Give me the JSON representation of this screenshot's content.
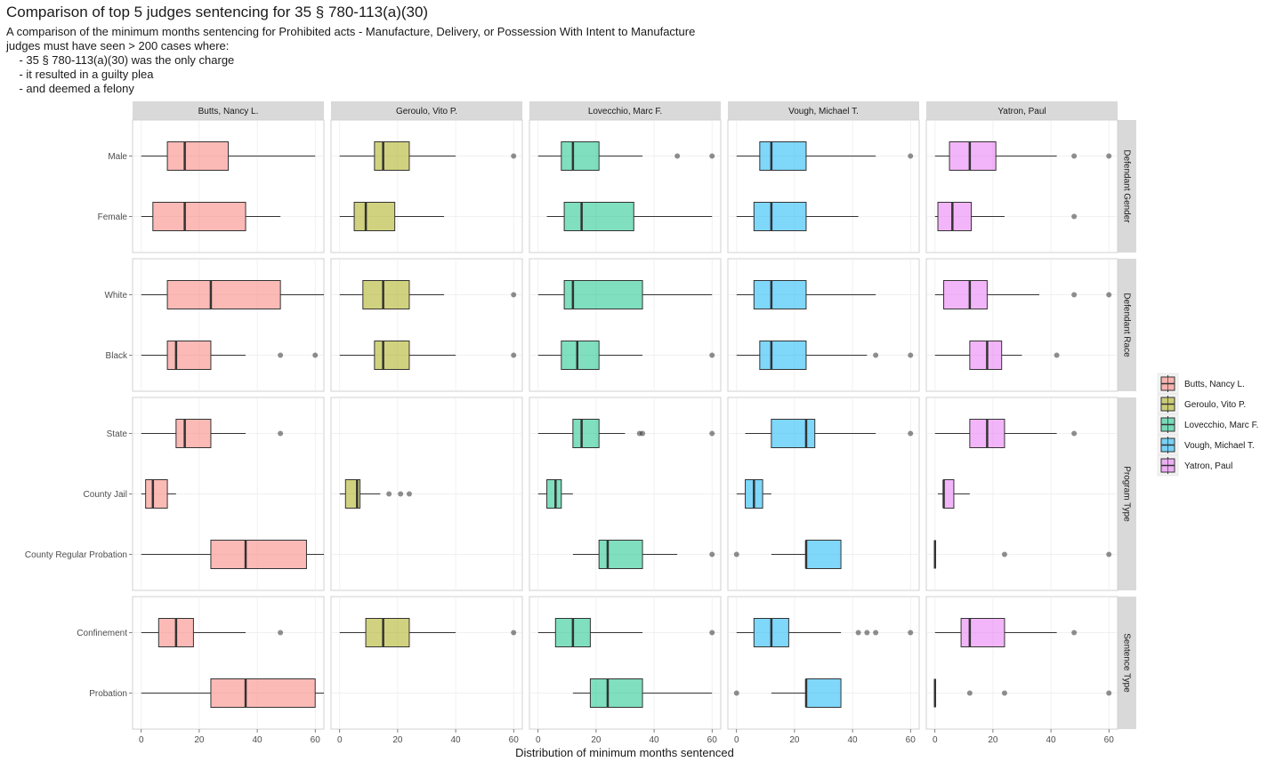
{
  "chart_data": {
    "type": "box",
    "title": "Comparison of top 5 judges sentencing for 35 § 780-113(a)(30)",
    "subtitle": [
      "A comparison of the minimum months sentencing for Prohibited acts - Manufacture, Delivery, or Possession With Intent to Manufacture",
      "judges must have seen > 200 cases where:",
      "    - 35 § 780-113(a)(30) was the only charge",
      "    - it resulted in a guilty plea",
      "    - and deemed a felony"
    ],
    "x_label": "Distribution of minimum months sentenced",
    "xlim": [
      -3,
      63
    ],
    "xticks": [
      0,
      20,
      40,
      60
    ],
    "grid": true,
    "legend_position": "right",
    "facet_rows": [
      {
        "name": "Defendant Gender",
        "categories": [
          "Male",
          "Female"
        ]
      },
      {
        "name": "Defendant Race",
        "categories": [
          "White",
          "Black"
        ]
      },
      {
        "name": "Program Type",
        "categories": [
          "State",
          "County Jail",
          "County Regular Probation"
        ]
      },
      {
        "name": "Sentence Type",
        "categories": [
          "Confinement",
          "Probation"
        ]
      }
    ],
    "series": [
      {
        "name": "Butts, Nancy L.",
        "color": "#F8766D",
        "rows": [
          [
            {
              "low": 0,
              "q1": 9,
              "median": 15,
              "q3": 30,
              "high": 60
            },
            {
              "low": 0,
              "q1": 4,
              "median": 15,
              "q3": 36,
              "high": 48
            }
          ],
          [
            {
              "low": 0,
              "q1": 9,
              "median": 24,
              "q3": 48,
              "high": 63
            },
            {
              "low": 0,
              "q1": 9,
              "median": 12,
              "q3": 24,
              "high": 36,
              "outliers": [
                48,
                60
              ]
            }
          ],
          [
            {
              "low": 0,
              "q1": 12,
              "median": 15,
              "q3": 24,
              "high": 36,
              "outliers": [
                48
              ]
            },
            {
              "low": 0,
              "q1": 1.5,
              "median": 4,
              "q3": 9,
              "high": 12
            },
            {
              "low": 0,
              "q1": 24,
              "median": 36,
              "q3": 57,
              "high": 63
            }
          ],
          [
            {
              "low": 0,
              "q1": 6,
              "median": 12,
              "q3": 18,
              "high": 36,
              "outliers": [
                48
              ]
            },
            {
              "low": 0,
              "q1": 24,
              "median": 36,
              "q3": 60,
              "high": 63
            }
          ]
        ]
      },
      {
        "name": "Geroulo, Vito P.",
        "color": "#A3A500",
        "rows": [
          [
            {
              "low": 0,
              "q1": 12,
              "median": 15,
              "q3": 24,
              "high": 40,
              "outliers": [
                60
              ]
            },
            {
              "low": 0,
              "q1": 5,
              "median": 9,
              "q3": 19,
              "high": 36
            }
          ],
          [
            {
              "low": 0,
              "q1": 8,
              "median": 15,
              "q3": 24,
              "high": 36,
              "outliers": [
                60
              ]
            },
            {
              "low": 0,
              "q1": 12,
              "median": 15,
              "q3": 24,
              "high": 40,
              "outliers": [
                60
              ]
            }
          ],
          [
            null,
            {
              "low": 0,
              "q1": 2,
              "median": 6,
              "q3": 7,
              "high": 14,
              "outliers": [
                17,
                21,
                24
              ]
            },
            null
          ],
          [
            {
              "low": 0,
              "q1": 9,
              "median": 15,
              "q3": 24,
              "high": 40,
              "outliers": [
                60
              ]
            },
            null
          ]
        ]
      },
      {
        "name": "Lovecchio, Marc F.",
        "color": "#00BF7D",
        "rows": [
          [
            {
              "low": 0,
              "q1": 8,
              "median": 12,
              "q3": 21,
              "high": 36,
              "outliers": [
                48,
                60
              ]
            },
            {
              "low": 3,
              "q1": 9,
              "median": 15,
              "q3": 33,
              "high": 60
            }
          ],
          [
            {
              "low": 0,
              "q1": 9,
              "median": 12,
              "q3": 36,
              "high": 60
            },
            {
              "low": 0,
              "q1": 8,
              "median": 13.5,
              "q3": 21,
              "high": 36,
              "outliers": [
                60
              ]
            }
          ],
          [
            {
              "low": 0,
              "q1": 12,
              "median": 15,
              "q3": 21,
              "high": 30,
              "outliers": [
                35,
                36,
                60
              ]
            },
            {
              "low": 0,
              "q1": 3,
              "median": 6,
              "q3": 8,
              "high": 12
            },
            {
              "low": 12,
              "q1": 21,
              "median": 24,
              "q3": 36,
              "high": 48,
              "outliers": [
                60
              ]
            }
          ],
          [
            {
              "low": 0,
              "q1": 6,
              "median": 12,
              "q3": 18,
              "high": 36,
              "outliers": [
                60
              ]
            },
            {
              "low": 12,
              "q1": 18,
              "median": 24,
              "q3": 36,
              "high": 60
            }
          ]
        ]
      },
      {
        "name": "Vough, Michael T.",
        "color": "#00B0F6",
        "rows": [
          [
            {
              "low": 0,
              "q1": 8,
              "median": 12,
              "q3": 24,
              "high": 48,
              "outliers": [
                60
              ]
            },
            {
              "low": 0,
              "q1": 6,
              "median": 12,
              "q3": 24,
              "high": 42
            }
          ],
          [
            {
              "low": 0,
              "q1": 6,
              "median": 12,
              "q3": 24,
              "high": 48
            },
            {
              "low": 0,
              "q1": 8,
              "median": 12,
              "q3": 24,
              "high": 45,
              "outliers": [
                48,
                60
              ]
            }
          ],
          [
            {
              "low": 3,
              "q1": 12,
              "median": 24,
              "q3": 27,
              "high": 48,
              "outliers": [
                60
              ]
            },
            {
              "low": 0,
              "q1": 3,
              "median": 6,
              "q3": 9,
              "high": 12
            },
            {
              "low": 12,
              "q1": 24,
              "median": 24,
              "q3": 36,
              "high": 36,
              "outliers": [
                0
              ]
            }
          ],
          [
            {
              "low": 0,
              "q1": 6,
              "median": 12,
              "q3": 18,
              "high": 36,
              "outliers": [
                42,
                45,
                48,
                60
              ]
            },
            {
              "low": 12,
              "q1": 24,
              "median": 24,
              "q3": 36,
              "high": 36,
              "outliers": [
                0
              ]
            }
          ]
        ]
      },
      {
        "name": "Yatron, Paul",
        "color": "#E76BF3",
        "rows": [
          [
            {
              "low": 0,
              "q1": 5,
              "median": 12,
              "q3": 21,
              "high": 42,
              "outliers": [
                48,
                60
              ]
            },
            {
              "low": 0,
              "q1": 1,
              "median": 6,
              "q3": 12.5,
              "high": 24,
              "outliers": [
                48
              ]
            }
          ],
          [
            {
              "low": 0,
              "q1": 3,
              "median": 12,
              "q3": 18,
              "high": 36,
              "outliers": [
                48,
                60
              ]
            },
            {
              "low": 0,
              "q1": 12,
              "median": 18,
              "q3": 23,
              "high": 30,
              "outliers": [
                42
              ]
            }
          ],
          [
            {
              "low": 0,
              "q1": 12,
              "median": 18,
              "q3": 24,
              "high": 42,
              "outliers": [
                48
              ]
            },
            {
              "low": 1,
              "q1": 3,
              "median": 3,
              "q3": 6.5,
              "high": 12
            },
            {
              "low": 0,
              "q1": 0,
              "median": 0,
              "q3": 0,
              "high": 0,
              "outliers": [
                24,
                60
              ]
            }
          ],
          [
            {
              "low": 0,
              "q1": 9,
              "median": 12,
              "q3": 24,
              "high": 42,
              "outliers": [
                48
              ]
            },
            {
              "low": 0,
              "q1": 0,
              "median": 0,
              "q3": 0,
              "high": 0,
              "outliers": [
                12,
                24,
                60
              ]
            }
          ]
        ]
      }
    ]
  }
}
